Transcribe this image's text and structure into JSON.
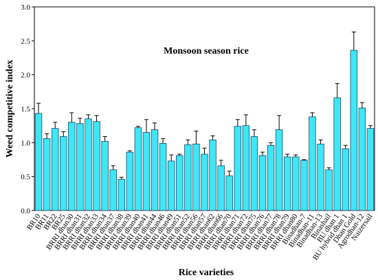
{
  "chart_data": {
    "type": "bar",
    "annotation": "Monsoon season rice",
    "x_label": "Rice varieties",
    "y_label": "Weed competitive index",
    "categories": [
      "BR10",
      "BR11",
      "BR22",
      "BR25",
      "BRRI dhan30",
      "BRRI dhan31",
      "BRRI dhan32",
      "BRRI dhan33",
      "BRRI dhan34",
      "BRRI dhan37",
      "BRRI dhan38",
      "BRRI dhan39",
      "BRRI dhan40",
      "BRRI dhan41",
      "BRRI dhan44",
      "BRRI dhan46",
      "BRRI dhan49",
      "BRRI dhan51",
      "BRRI dhan52",
      "BRRI dhan56",
      "BRRI dhan57",
      "BRRI dhan62",
      "BRRI dhan66",
      "BRRI dhan70",
      "BRRI dhan71",
      "BRRI dhan72",
      "BRRI dhan75",
      "BRRI dhan76",
      "BRRI dhan77",
      "BRRI dhan78",
      "BRRI dhan79",
      "BRRI dhan80",
      "Binadhan-7",
      "Binadhan-11",
      "Binadhan-13",
      "Binashail",
      "BU dhan 1",
      "BU hybrid dhan 1",
      "Dhan Gold",
      "Agrodhan-12",
      "Naizersail"
    ],
    "values": [
      1.43,
      1.06,
      1.21,
      1.09,
      1.3,
      1.28,
      1.35,
      1.31,
      1.02,
      0.6,
      0.46,
      0.86,
      1.22,
      1.15,
      1.19,
      0.99,
      0.73,
      0.81,
      0.97,
      0.98,
      0.83,
      1.04,
      0.66,
      0.51,
      1.24,
      1.25,
      1.09,
      0.81,
      0.96,
      1.19,
      0.79,
      0.79,
      0.74,
      1.38,
      0.98,
      0.6,
      1.66,
      0.91,
      2.36,
      1.51,
      1.21
    ],
    "errors": [
      0.15,
      0.07,
      0.09,
      0.07,
      0.14,
      0.08,
      0.06,
      0.09,
      0.07,
      0.06,
      0.03,
      0.02,
      0.02,
      0.19,
      0.1,
      0.07,
      0.09,
      0.02,
      0.07,
      0.19,
      0.09,
      0.06,
      0.08,
      0.07,
      0.1,
      0.16,
      0.1,
      0.05,
      0.04,
      0.21,
      0.04,
      0.03,
      0.01,
      0.06,
      0.06,
      0.03,
      0.21,
      0.05,
      0.27,
      0.08,
      0.04
    ],
    "color": "#3fe6f6",
    "ylim": [
      0,
      3
    ],
    "yticks": [
      {
        "value": 0,
        "label": "0.0"
      },
      {
        "value": 0.5,
        "label": "0.5"
      },
      {
        "value": 1,
        "label": "1.0"
      },
      {
        "value": 1.5,
        "label": "1.5"
      },
      {
        "value": 2,
        "label": "2.0"
      },
      {
        "value": 2.5,
        "label": "2.5"
      },
      {
        "value": 3,
        "label": "3.0"
      }
    ],
    "grid": false
  }
}
